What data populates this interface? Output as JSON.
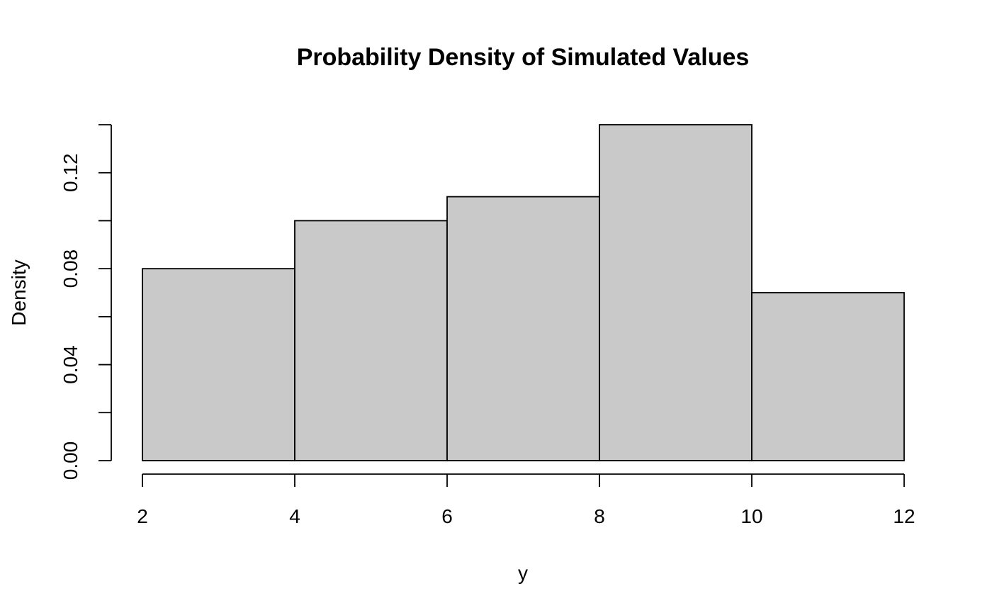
{
  "chart_data": {
    "type": "bar",
    "title": "Probability Density of Simulated Values",
    "xlabel": "y",
    "ylabel": "Density",
    "bins": [
      {
        "x0": 2,
        "x1": 4,
        "density": 0.08
      },
      {
        "x0": 4,
        "x1": 6,
        "density": 0.1
      },
      {
        "x0": 6,
        "x1": 8,
        "density": 0.11
      },
      {
        "x0": 8,
        "x1": 10,
        "density": 0.14
      },
      {
        "x0": 10,
        "x1": 12,
        "density": 0.07
      }
    ],
    "x_ticks": [
      2,
      4,
      6,
      8,
      10,
      12
    ],
    "y_ticks": [
      "0.00",
      "0.04",
      "0.08",
      "0.12"
    ],
    "y_minor_ticks": [
      0.02,
      0.06,
      0.1,
      0.14
    ],
    "xlim": [
      2,
      12
    ],
    "ylim": [
      0,
      0.14
    ],
    "grid": false,
    "bar_fill": "#c9c9c9",
    "bar_stroke": "#000000"
  }
}
